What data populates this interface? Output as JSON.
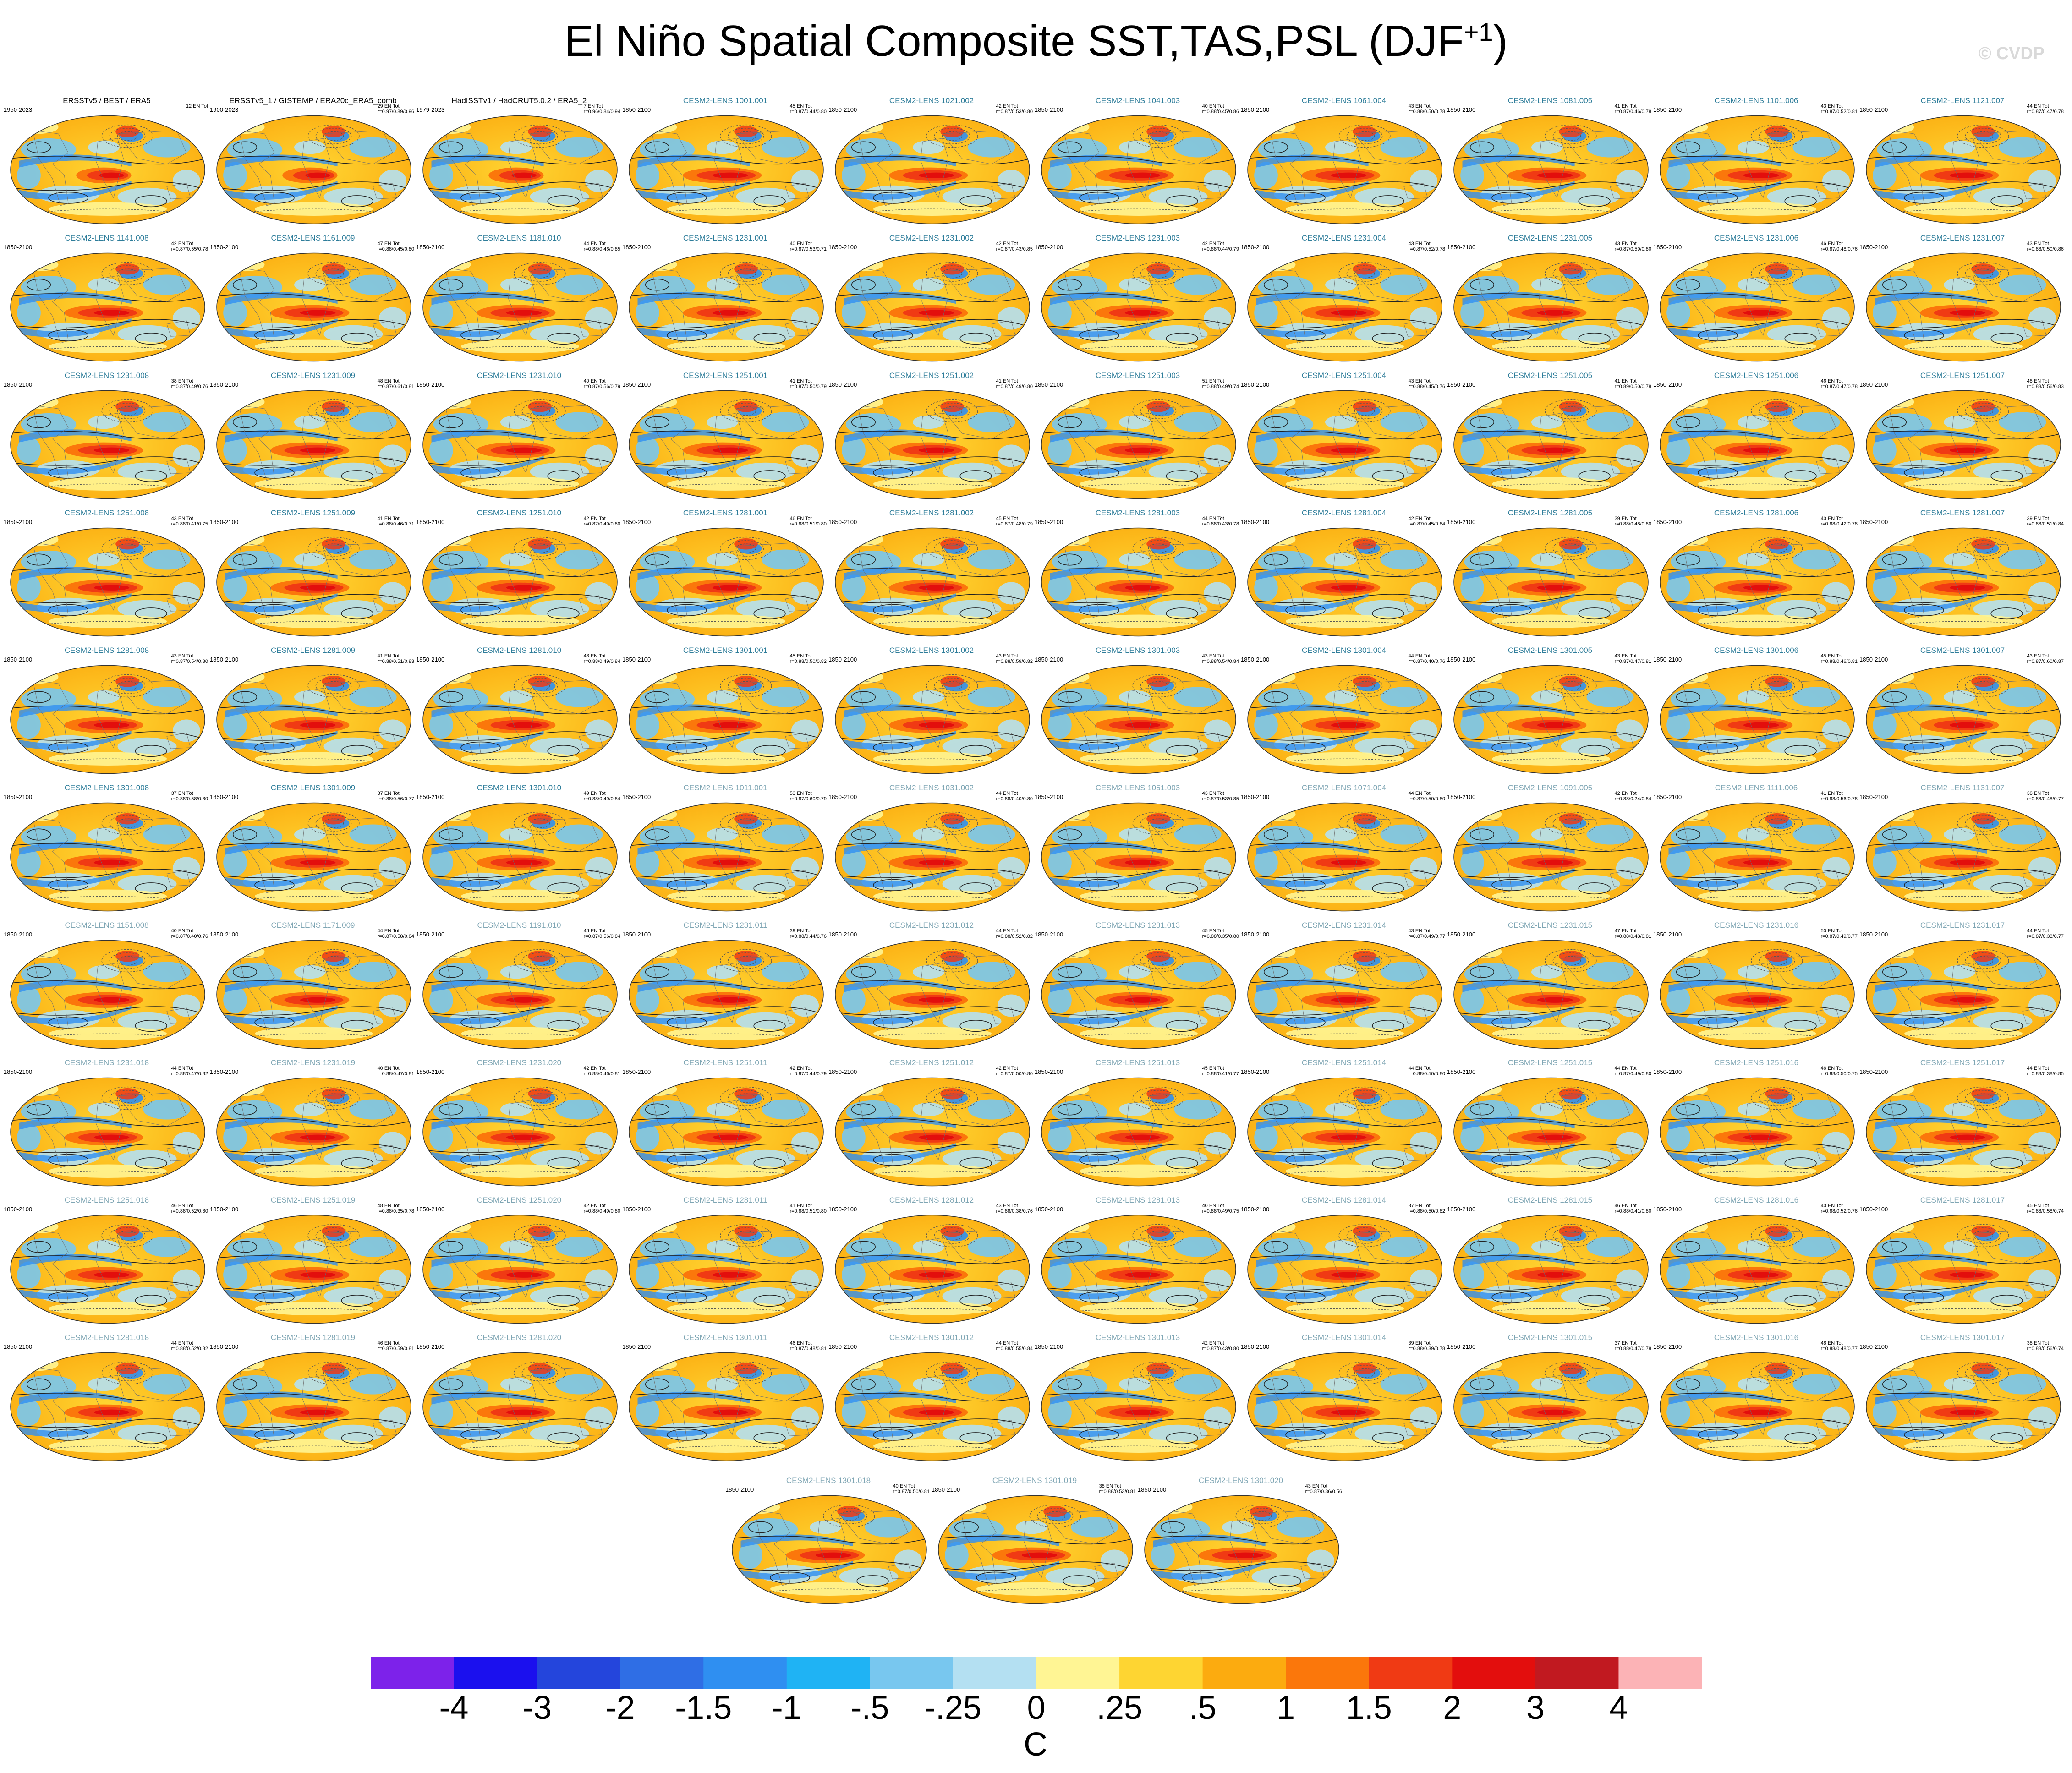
{
  "title": "El Niño Spatial Composite SST,TAS,PSL (DJF",
  "title_sup": "+1",
  "title_close": ")",
  "watermark": "© CVDP",
  "colorbar": {
    "colors": [
      "#7d22ea",
      "#1b10ee",
      "#2445dc",
      "#2f6ee5",
      "#2f8ff1",
      "#1fb3f4",
      "#78c7ef",
      "#b4e0f2",
      "#fff594",
      "#fed532",
      "#fcab0f",
      "#fb770b",
      "#f03a14",
      "#e30e0d",
      "#c11920",
      "#fcb3b6"
    ],
    "ticks": [
      "-4",
      "-3",
      "-2",
      "-1.5",
      "-1",
      "-.5",
      "-.25",
      "0",
      ".25",
      ".5",
      "1",
      "1.5",
      "2",
      "3",
      "4"
    ],
    "units": "C"
  },
  "chart_data": {
    "type": "heatmap",
    "description_variables": [
      "SST",
      "TAS",
      "PSL"
    ],
    "panels": [
      {
        "title": "ERSSTv5 / BEST / ERA5",
        "period": "1950-2023",
        "stat1": "",
        "stat2": "12 EN Tot",
        "kind": "obs"
      },
      {
        "title": "ERSSTv5_1 / GISTEMP / ERA20c_ERA5_comb",
        "period": "1900-2023",
        "stat1": "29 EN Tot",
        "stat2": "r=0.97/0.89/0.96",
        "kind": "obs"
      },
      {
        "title": "HadISSTv1 / HadCRUT5.0.2 / ERA5_2",
        "period": "1979-2023",
        "stat1": "7 EN Tot",
        "stat2": "r=0.96/0.84/0.94",
        "kind": "obs"
      },
      {
        "title": "CESM2-LENS 1001.001",
        "period": "1850-2100",
        "stat1": "45 EN Tot",
        "stat2": "r=0.87/0.44/0.80",
        "kind": "model"
      },
      {
        "title": "CESM2-LENS 1021.002",
        "period": "1850-2100",
        "stat1": "42 EN Tot",
        "stat2": "r=0.87/0.53/0.80",
        "kind": "model"
      },
      {
        "title": "CESM2-LENS 1041.003",
        "period": "1850-2100",
        "stat1": "40 EN Tot",
        "stat2": "r=0.88/0.45/0.86",
        "kind": "model"
      },
      {
        "title": "CESM2-LENS 1061.004",
        "period": "1850-2100",
        "stat1": "43 EN Tot",
        "stat2": "r=0.88/0.50/0.78",
        "kind": "model"
      },
      {
        "title": "CESM2-LENS 1081.005",
        "period": "1850-2100",
        "stat1": "41 EN Tot",
        "stat2": "r=0.87/0.46/0.78",
        "kind": "model"
      },
      {
        "title": "CESM2-LENS 1101.006",
        "period": "1850-2100",
        "stat1": "43 EN Tot",
        "stat2": "r=0.87/0.52/0.81",
        "kind": "model"
      },
      {
        "title": "CESM2-LENS 1121.007",
        "period": "1850-2100",
        "stat1": "44 EN Tot",
        "stat2": "r=0.87/0.47/0.78",
        "kind": "model"
      },
      {
        "title": "CESM2-LENS 1141.008",
        "period": "1850-2100",
        "stat1": "42 EN Tot",
        "stat2": "r=0.87/0.55/0.78",
        "kind": "model"
      },
      {
        "title": "CESM2-LENS 1161.009",
        "period": "1850-2100",
        "stat1": "47 EN Tot",
        "stat2": "r=0.88/0.45/0.80",
        "kind": "model"
      },
      {
        "title": "CESM2-LENS 1181.010",
        "period": "1850-2100",
        "stat1": "44 EN Tot",
        "stat2": "r=0.88/0.46/0.85",
        "kind": "model"
      },
      {
        "title": "CESM2-LENS 1231.001",
        "period": "1850-2100",
        "stat1": "40 EN Tot",
        "stat2": "r=0.87/0.53/0.71",
        "kind": "model"
      },
      {
        "title": "CESM2-LENS 1231.002",
        "period": "1850-2100",
        "stat1": "42 EN Tot",
        "stat2": "r=0.87/0.43/0.85",
        "kind": "model"
      },
      {
        "title": "CESM2-LENS 1231.003",
        "period": "1850-2100",
        "stat1": "42 EN Tot",
        "stat2": "r=0.88/0.44/0.79",
        "kind": "model"
      },
      {
        "title": "CESM2-LENS 1231.004",
        "period": "1850-2100",
        "stat1": "43 EN Tot",
        "stat2": "r=0.87/0.52/0.78",
        "kind": "model"
      },
      {
        "title": "CESM2-LENS 1231.005",
        "period": "1850-2100",
        "stat1": "43 EN Tot",
        "stat2": "r=0.87/0.59/0.80",
        "kind": "model"
      },
      {
        "title": "CESM2-LENS 1231.006",
        "period": "1850-2100",
        "stat1": "46 EN Tot",
        "stat2": "r=0.87/0.48/0.76",
        "kind": "model"
      },
      {
        "title": "CESM2-LENS 1231.007",
        "period": "1850-2100",
        "stat1": "43 EN Tot",
        "stat2": "r=0.88/0.50/0.86",
        "kind": "model"
      },
      {
        "title": "CESM2-LENS 1231.008",
        "period": "1850-2100",
        "stat1": "38 EN Tot",
        "stat2": "r=0.87/0.49/0.76",
        "kind": "model"
      },
      {
        "title": "CESM2-LENS 1231.009",
        "period": "1850-2100",
        "stat1": "48 EN Tot",
        "stat2": "r=0.87/0.61/0.81",
        "kind": "model"
      },
      {
        "title": "CESM2-LENS 1231.010",
        "period": "1850-2100",
        "stat1": "40 EN Tot",
        "stat2": "r=0.87/0.56/0.79",
        "kind": "model"
      },
      {
        "title": "CESM2-LENS 1251.001",
        "period": "1850-2100",
        "stat1": "41 EN Tot",
        "stat2": "r=0.87/0.50/0.79",
        "kind": "model"
      },
      {
        "title": "CESM2-LENS 1251.002",
        "period": "1850-2100",
        "stat1": "41 EN Tot",
        "stat2": "r=0.87/0.49/0.80",
        "kind": "model"
      },
      {
        "title": "CESM2-LENS 1251.003",
        "period": "1850-2100",
        "stat1": "51 EN Tot",
        "stat2": "r=0.88/0.49/0.74",
        "kind": "model"
      },
      {
        "title": "CESM2-LENS 1251.004",
        "period": "1850-2100",
        "stat1": "43 EN Tot",
        "stat2": "r=0.88/0.45/0.76",
        "kind": "model"
      },
      {
        "title": "CESM2-LENS 1251.005",
        "period": "1850-2100",
        "stat1": "41 EN Tot",
        "stat2": "r=0.89/0.50/0.78",
        "kind": "model"
      },
      {
        "title": "CESM2-LENS 1251.006",
        "period": "1850-2100",
        "stat1": "46 EN Tot",
        "stat2": "r=0.87/0.47/0.78",
        "kind": "model"
      },
      {
        "title": "CESM2-LENS 1251.007",
        "period": "1850-2100",
        "stat1": "48 EN Tot",
        "stat2": "r=0.88/0.56/0.83",
        "kind": "model"
      },
      {
        "title": "CESM2-LENS 1251.008",
        "period": "1850-2100",
        "stat1": "43 EN Tot",
        "stat2": "r=0.88/0.41/0.75",
        "kind": "model"
      },
      {
        "title": "CESM2-LENS 1251.009",
        "period": "1850-2100",
        "stat1": "41 EN Tot",
        "stat2": "r=0.88/0.46/0.71",
        "kind": "model"
      },
      {
        "title": "CESM2-LENS 1251.010",
        "period": "1850-2100",
        "stat1": "42 EN Tot",
        "stat2": "r=0.87/0.49/0.80",
        "kind": "model"
      },
      {
        "title": "CESM2-LENS 1281.001",
        "period": "1850-2100",
        "stat1": "46 EN Tot",
        "stat2": "r=0.88/0.51/0.80",
        "kind": "model"
      },
      {
        "title": "CESM2-LENS 1281.002",
        "period": "1850-2100",
        "stat1": "45 EN Tot",
        "stat2": "r=0.87/0.48/0.79",
        "kind": "model"
      },
      {
        "title": "CESM2-LENS 1281.003",
        "period": "1850-2100",
        "stat1": "44 EN Tot",
        "stat2": "r=0.88/0.43/0.78",
        "kind": "model"
      },
      {
        "title": "CESM2-LENS 1281.004",
        "period": "1850-2100",
        "stat1": "42 EN Tot",
        "stat2": "r=0.87/0.45/0.84",
        "kind": "model"
      },
      {
        "title": "CESM2-LENS 1281.005",
        "period": "1850-2100",
        "stat1": "39 EN Tot",
        "stat2": "r=0.88/0.48/0.80",
        "kind": "model"
      },
      {
        "title": "CESM2-LENS 1281.006",
        "period": "1850-2100",
        "stat1": "40 EN Tot",
        "stat2": "r=0.88/0.42/0.78",
        "kind": "model"
      },
      {
        "title": "CESM2-LENS 1281.007",
        "period": "1850-2100",
        "stat1": "39 EN Tot",
        "stat2": "r=0.88/0.51/0.84",
        "kind": "model"
      },
      {
        "title": "CESM2-LENS 1281.008",
        "period": "1850-2100",
        "stat1": "43 EN Tot",
        "stat2": "r=0.87/0.54/0.80",
        "kind": "model"
      },
      {
        "title": "CESM2-LENS 1281.009",
        "period": "1850-2100",
        "stat1": "41 EN Tot",
        "stat2": "r=0.88/0.51/0.83",
        "kind": "model"
      },
      {
        "title": "CESM2-LENS 1281.010",
        "period": "1850-2100",
        "stat1": "48 EN Tot",
        "stat2": "r=0.88/0.49/0.84",
        "kind": "model"
      },
      {
        "title": "CESM2-LENS 1301.001",
        "period": "1850-2100",
        "stat1": "45 EN Tot",
        "stat2": "r=0.88/0.50/0.82",
        "kind": "model"
      },
      {
        "title": "CESM2-LENS 1301.002",
        "period": "1850-2100",
        "stat1": "43 EN Tot",
        "stat2": "r=0.88/0.59/0.82",
        "kind": "model"
      },
      {
        "title": "CESM2-LENS 1301.003",
        "period": "1850-2100",
        "stat1": "43 EN Tot",
        "stat2": "r=0.88/0.54/0.84",
        "kind": "model"
      },
      {
        "title": "CESM2-LENS 1301.004",
        "period": "1850-2100",
        "stat1": "44 EN Tot",
        "stat2": "r=0.87/0.40/0.76",
        "kind": "model"
      },
      {
        "title": "CESM2-LENS 1301.005",
        "period": "1850-2100",
        "stat1": "43 EN Tot",
        "stat2": "r=0.87/0.47/0.81",
        "kind": "model"
      },
      {
        "title": "CESM2-LENS 1301.006",
        "period": "1850-2100",
        "stat1": "45 EN Tot",
        "stat2": "r=0.88/0.46/0.81",
        "kind": "model"
      },
      {
        "title": "CESM2-LENS 1301.007",
        "period": "1850-2100",
        "stat1": "43 EN Tot",
        "stat2": "r=0.87/0.60/0.87",
        "kind": "model"
      },
      {
        "title": "CESM2-LENS 1301.008",
        "period": "1850-2100",
        "stat1": "37 EN Tot",
        "stat2": "r=0.88/0.58/0.80",
        "kind": "model"
      },
      {
        "title": "CESM2-LENS 1301.009",
        "period": "1850-2100",
        "stat1": "37 EN Tot",
        "stat2": "r=0.88/0.56/0.77",
        "kind": "model"
      },
      {
        "title": "CESM2-LENS 1301.010",
        "period": "1850-2100",
        "stat1": "49 EN Tot",
        "stat2": "r=0.88/0.49/0.84",
        "kind": "model"
      },
      {
        "title": "CESM2-LENS 1011.001",
        "period": "1850-2100",
        "stat1": "53 EN Tot",
        "stat2": "r=0.87/0.60/0.79",
        "kind": "model2"
      },
      {
        "title": "CESM2-LENS 1031.002",
        "period": "1850-2100",
        "stat1": "44 EN Tot",
        "stat2": "r=0.88/0.40/0.80",
        "kind": "model2"
      },
      {
        "title": "CESM2-LENS 1051.003",
        "period": "1850-2100",
        "stat1": "43 EN Tot",
        "stat2": "r=0.87/0.53/0.85",
        "kind": "model2"
      },
      {
        "title": "CESM2-LENS 1071.004",
        "period": "1850-2100",
        "stat1": "44 EN Tot",
        "stat2": "r=0.87/0.50/0.80",
        "kind": "model2"
      },
      {
        "title": "CESM2-LENS 1091.005",
        "period": "1850-2100",
        "stat1": "42 EN Tot",
        "stat2": "r=0.88/0.24/0.84",
        "kind": "model2"
      },
      {
        "title": "CESM2-LENS 1111.006",
        "period": "1850-2100",
        "stat1": "41 EN Tot",
        "stat2": "r=0.88/0.56/0.78",
        "kind": "model2"
      },
      {
        "title": "CESM2-LENS 1131.007",
        "period": "1850-2100",
        "stat1": "38 EN Tot",
        "stat2": "r=0.88/0.48/0.77",
        "kind": "model2"
      },
      {
        "title": "CESM2-LENS 1151.008",
        "period": "1850-2100",
        "stat1": "40 EN Tot",
        "stat2": "r=0.87/0.40/0.76",
        "kind": "model2"
      },
      {
        "title": "CESM2-LENS 1171.009",
        "period": "1850-2100",
        "stat1": "44 EN Tot",
        "stat2": "r=0.87/0.58/0.84",
        "kind": "model2"
      },
      {
        "title": "CESM2-LENS 1191.010",
        "period": "1850-2100",
        "stat1": "46 EN Tot",
        "stat2": "r=0.87/0.56/0.84",
        "kind": "model2"
      },
      {
        "title": "CESM2-LENS 1231.011",
        "period": "1850-2100",
        "stat1": "39 EN Tot",
        "stat2": "r=0.88/0.44/0.76",
        "kind": "model2"
      },
      {
        "title": "CESM2-LENS 1231.012",
        "period": "1850-2100",
        "stat1": "44 EN Tot",
        "stat2": "r=0.88/0.52/0.82",
        "kind": "model2"
      },
      {
        "title": "CESM2-LENS 1231.013",
        "period": "1850-2100",
        "stat1": "45 EN Tot",
        "stat2": "r=0.88/0.35/0.80",
        "kind": "model2"
      },
      {
        "title": "CESM2-LENS 1231.014",
        "period": "1850-2100",
        "stat1": "43 EN Tot",
        "stat2": "r=0.87/0.49/0.77",
        "kind": "model2"
      },
      {
        "title": "CESM2-LENS 1231.015",
        "period": "1850-2100",
        "stat1": "47 EN Tot",
        "stat2": "r=0.88/0.48/0.81",
        "kind": "model2"
      },
      {
        "title": "CESM2-LENS 1231.016",
        "period": "1850-2100",
        "stat1": "50 EN Tot",
        "stat2": "r=0.87/0.49/0.77",
        "kind": "model2"
      },
      {
        "title": "CESM2-LENS 1231.017",
        "period": "1850-2100",
        "stat1": "44 EN Tot",
        "stat2": "r=0.87/0.38/0.77",
        "kind": "model2"
      },
      {
        "title": "CESM2-LENS 1231.018",
        "period": "1850-2100",
        "stat1": "44 EN Tot",
        "stat2": "r=0.88/0.47/0.82",
        "kind": "model2"
      },
      {
        "title": "CESM2-LENS 1231.019",
        "period": "1850-2100",
        "stat1": "40 EN Tot",
        "stat2": "r=0.88/0.47/0.81",
        "kind": "model2"
      },
      {
        "title": "CESM2-LENS 1231.020",
        "period": "1850-2100",
        "stat1": "42 EN Tot",
        "stat2": "r=0.88/0.46/0.81",
        "kind": "model2"
      },
      {
        "title": "CESM2-LENS 1251.011",
        "period": "1850-2100",
        "stat1": "42 EN Tot",
        "stat2": "r=0.87/0.44/0.79",
        "kind": "model2"
      },
      {
        "title": "CESM2-LENS 1251.012",
        "period": "1850-2100",
        "stat1": "42 EN Tot",
        "stat2": "r=0.87/0.50/0.80",
        "kind": "model2"
      },
      {
        "title": "CESM2-LENS 1251.013",
        "period": "1850-2100",
        "stat1": "45 EN Tot",
        "stat2": "r=0.88/0.41/0.77",
        "kind": "model2"
      },
      {
        "title": "CESM2-LENS 1251.014",
        "period": "1850-2100",
        "stat1": "44 EN Tot",
        "stat2": "r=0.88/0.50/0.80",
        "kind": "model2"
      },
      {
        "title": "CESM2-LENS 1251.015",
        "period": "1850-2100",
        "stat1": "44 EN Tot",
        "stat2": "r=0.87/0.49/0.80",
        "kind": "model2"
      },
      {
        "title": "CESM2-LENS 1251.016",
        "period": "1850-2100",
        "stat1": "46 EN Tot",
        "stat2": "r=0.88/0.50/0.75",
        "kind": "model2"
      },
      {
        "title": "CESM2-LENS 1251.017",
        "period": "1850-2100",
        "stat1": "44 EN Tot",
        "stat2": "r=0.88/0.38/0.85",
        "kind": "model2"
      },
      {
        "title": "CESM2-LENS 1251.018",
        "period": "1850-2100",
        "stat1": "46 EN Tot",
        "stat2": "r=0.88/0.52/0.80",
        "kind": "model2"
      },
      {
        "title": "CESM2-LENS 1251.019",
        "period": "1850-2100",
        "stat1": "48 EN Tot",
        "stat2": "r=0.88/0.35/0.78",
        "kind": "model2"
      },
      {
        "title": "CESM2-LENS 1251.020",
        "period": "1850-2100",
        "stat1": "42 EN Tot",
        "stat2": "r=0.88/0.49/0.80",
        "kind": "model2"
      },
      {
        "title": "CESM2-LENS 1281.011",
        "period": "1850-2100",
        "stat1": "41 EN Tot",
        "stat2": "r=0.88/0.51/0.80",
        "kind": "model2"
      },
      {
        "title": "CESM2-LENS 1281.012",
        "period": "1850-2100",
        "stat1": "43 EN Tot",
        "stat2": "r=0.88/0.38/0.76",
        "kind": "model2"
      },
      {
        "title": "CESM2-LENS 1281.013",
        "period": "1850-2100",
        "stat1": "40 EN Tot",
        "stat2": "r=0.88/0.49/0.75",
        "kind": "model2"
      },
      {
        "title": "CESM2-LENS 1281.014",
        "period": "1850-2100",
        "stat1": "37 EN Tot",
        "stat2": "r=0.88/0.50/0.82",
        "kind": "model2"
      },
      {
        "title": "CESM2-LENS 1281.015",
        "period": "1850-2100",
        "stat1": "46 EN Tot",
        "stat2": "r=0.88/0.41/0.80",
        "kind": "model2"
      },
      {
        "title": "CESM2-LENS 1281.016",
        "period": "1850-2100",
        "stat1": "40 EN Tot",
        "stat2": "r=0.88/0.52/0.76",
        "kind": "model2"
      },
      {
        "title": "CESM2-LENS 1281.017",
        "period": "1850-2100",
        "stat1": "45 EN Tot",
        "stat2": "r=0.88/0.58/0.74",
        "kind": "model2"
      },
      {
        "title": "CESM2-LENS 1281.018",
        "period": "1850-2100",
        "stat1": "44 EN Tot",
        "stat2": "r=0.88/0.52/0.82",
        "kind": "model2"
      },
      {
        "title": "CESM2-LENS 1281.019",
        "period": "1850-2100",
        "stat1": "46 EN Tot",
        "stat2": "r=0.87/0.59/0.81",
        "kind": "model2"
      },
      {
        "title": "CESM2-LENS 1281.020",
        "period": "1850-2100",
        "stat1": "",
        "stat2": "",
        "kind": "model2"
      },
      {
        "title": "CESM2-LENS 1301.011",
        "period": "1850-2100",
        "stat1": "46 EN Tot",
        "stat2": "r=0.87/0.48/0.81",
        "kind": "model2"
      },
      {
        "title": "CESM2-LENS 1301.012",
        "period": "1850-2100",
        "stat1": "44 EN Tot",
        "stat2": "r=0.88/0.55/0.84",
        "kind": "model2"
      },
      {
        "title": "CESM2-LENS 1301.013",
        "period": "1850-2100",
        "stat1": "42 EN Tot",
        "stat2": "r=0.87/0.43/0.80",
        "kind": "model2"
      },
      {
        "title": "CESM2-LENS 1301.014",
        "period": "1850-2100",
        "stat1": "39 EN Tot",
        "stat2": "r=0.88/0.39/0.78",
        "kind": "model2"
      },
      {
        "title": "CESM2-LENS 1301.015",
        "period": "1850-2100",
        "stat1": "37 EN Tot",
        "stat2": "r=0.88/0.47/0.78",
        "kind": "model2"
      },
      {
        "title": "CESM2-LENS 1301.016",
        "period": "1850-2100",
        "stat1": "48 EN Tot",
        "stat2": "r=0.88/0.48/0.77",
        "kind": "model2"
      },
      {
        "title": "CESM2-LENS 1301.017",
        "period": "1850-2100",
        "stat1": "38 EN Tot",
        "stat2": "r=0.88/0.56/0.74",
        "kind": "model2"
      },
      {
        "title": "CESM2-LENS 1301.018",
        "period": "1850-2100",
        "stat1": "40 EN Tot",
        "stat2": "r=0.87/0.50/0.81",
        "kind": "model2"
      },
      {
        "title": "CESM2-LENS 1301.019",
        "period": "1850-2100",
        "stat1": "38 EN Tot",
        "stat2": "r=0.88/0.53/0.81",
        "kind": "model2"
      },
      {
        "title": "CESM2-LENS 1301.020",
        "period": "1850-2100",
        "stat1": "43 EN Tot",
        "stat2": "r=0.87/0.36/0.56",
        "kind": "model2"
      }
    ]
  }
}
